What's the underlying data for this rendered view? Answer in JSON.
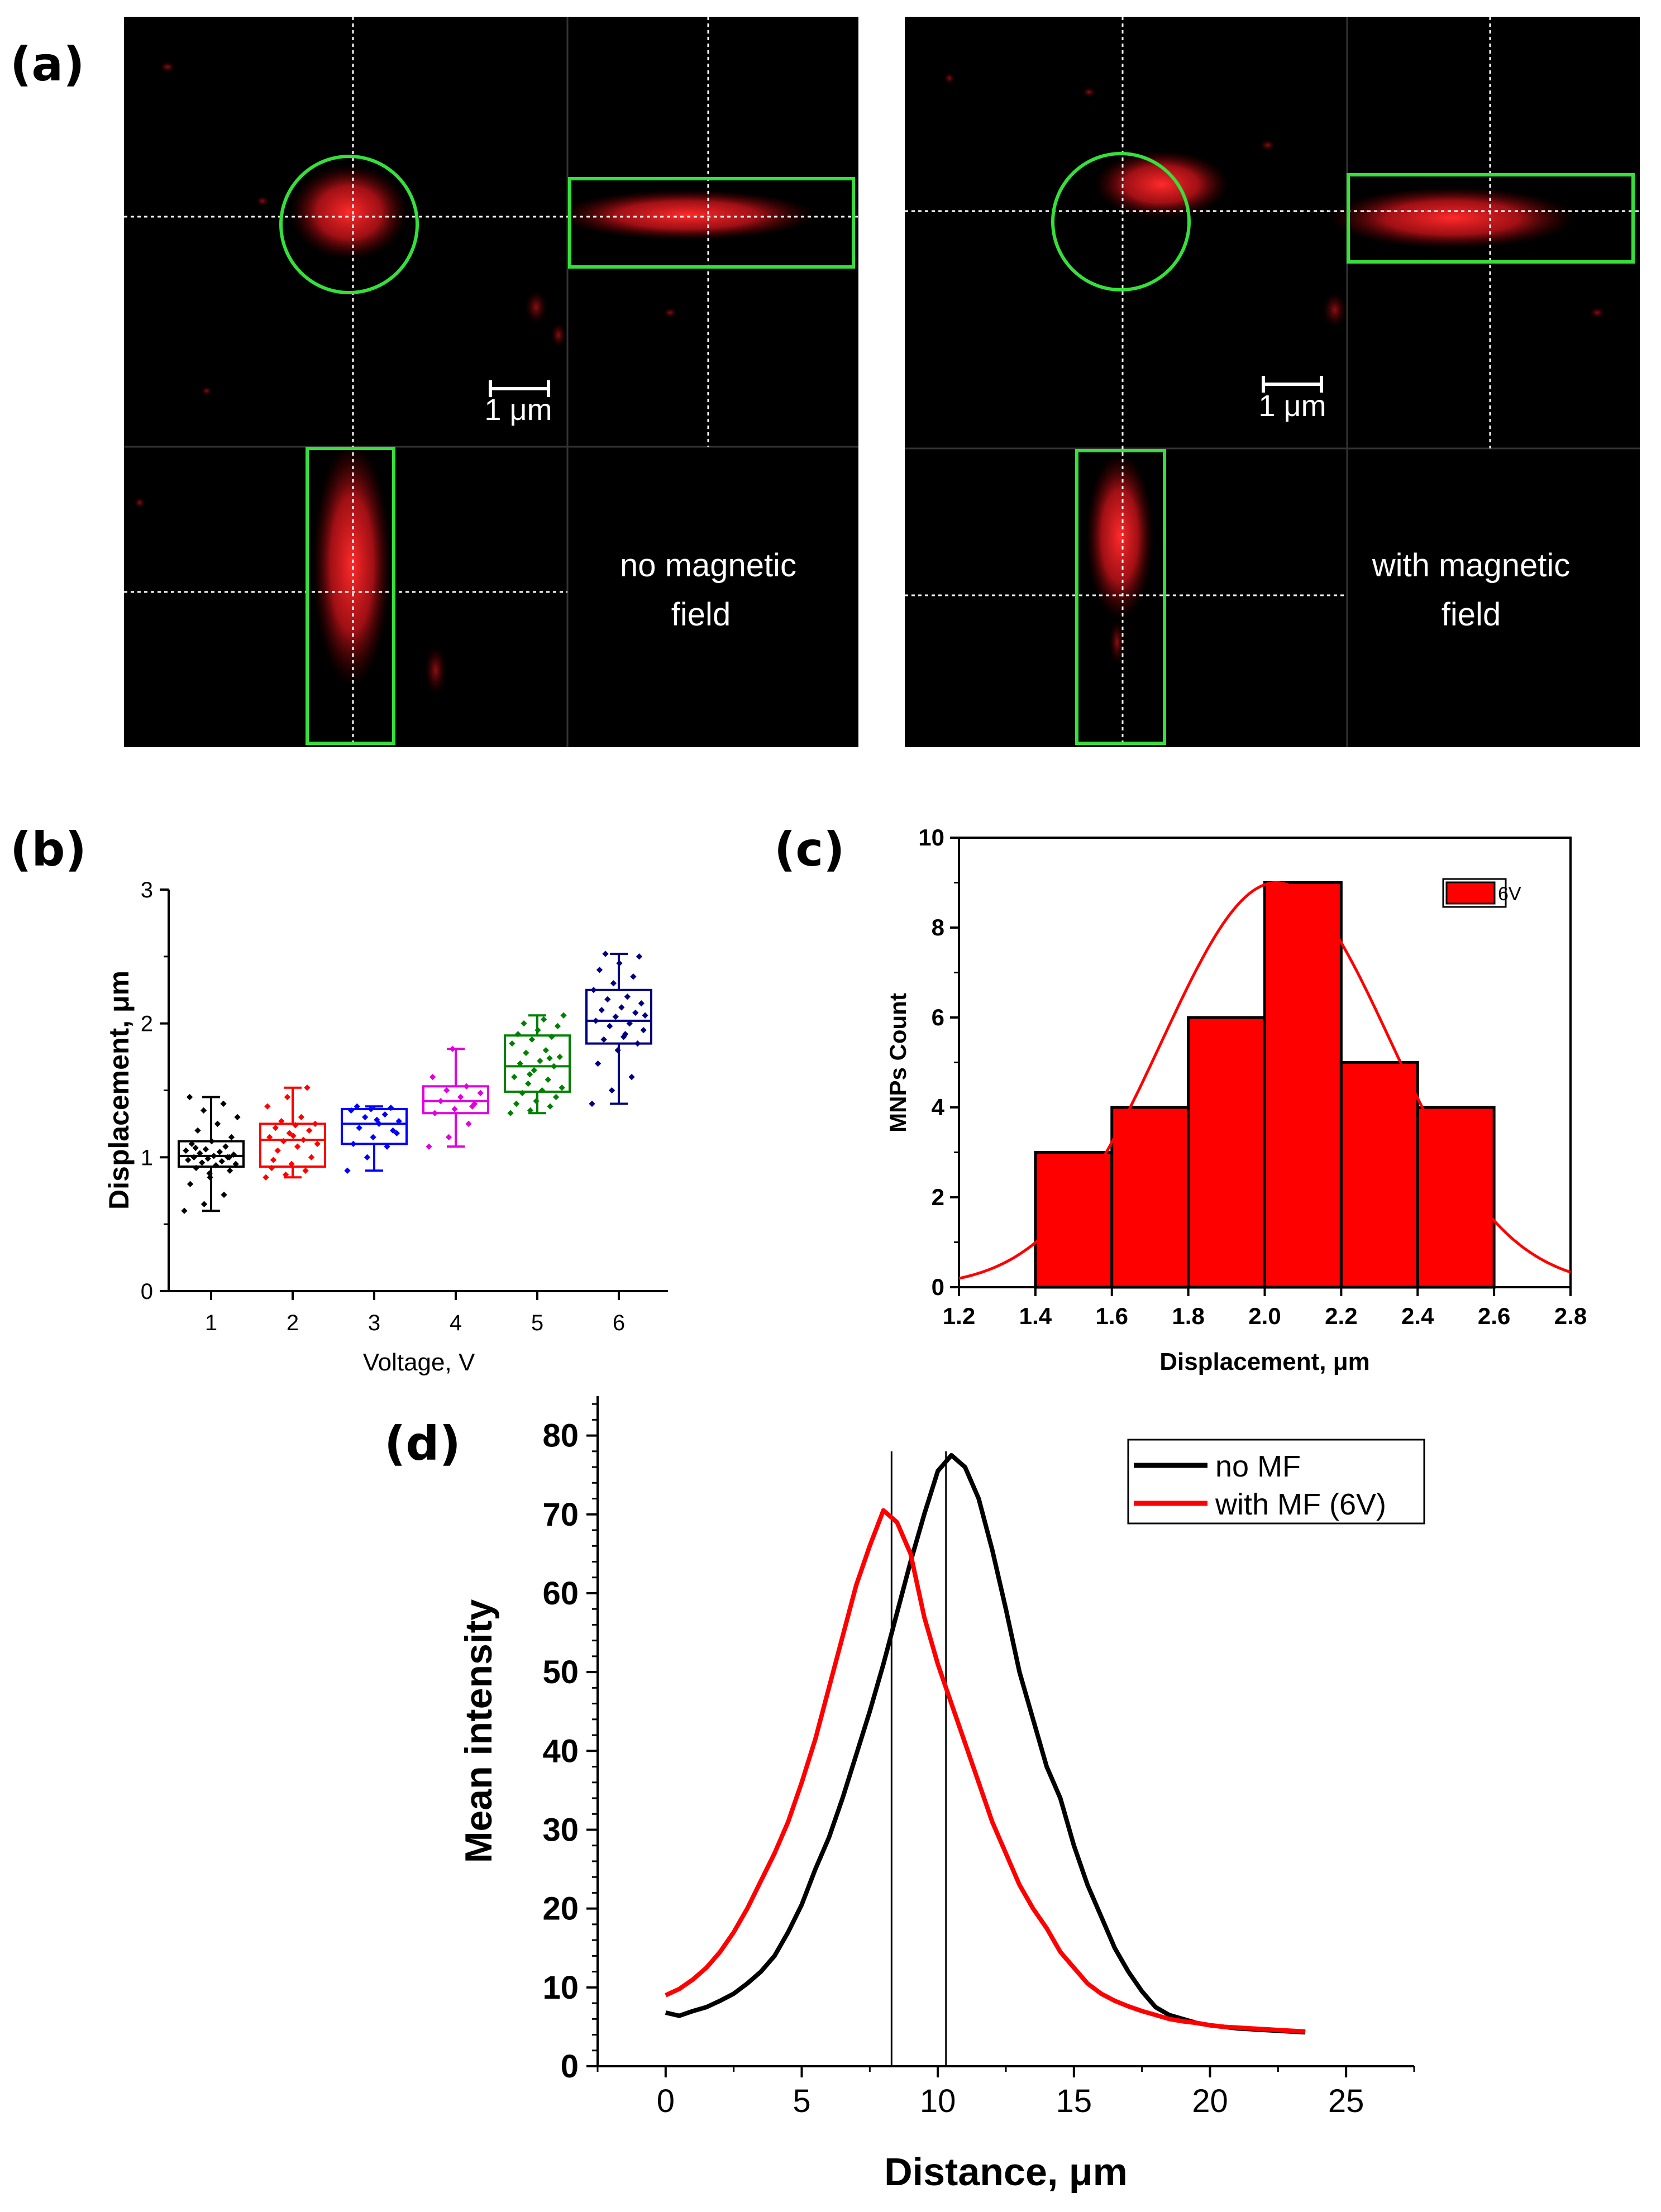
{
  "panel_labels": {
    "a": "(a)",
    "b": "(b)",
    "c": "(c)",
    "d": "(d)"
  },
  "micrographs": {
    "left": {
      "caption_line1": "no magnetic",
      "caption_line2": "field",
      "scale_bar": "1 μm"
    },
    "right": {
      "caption_line1": "with magnetic",
      "caption_line2": "field",
      "scale_bar": "1 μm"
    }
  },
  "colors": {
    "marker_green": "#35e03a",
    "signal_red": "#e8171c",
    "crosshair": "#ffffff"
  },
  "chart_data": [
    {
      "id": "b",
      "type": "box",
      "xlabel": "Voltage, V",
      "ylabel": "Displacement, μm",
      "categories": [
        "1",
        "2",
        "3",
        "4",
        "5",
        "6"
      ],
      "ylim": [
        0,
        3
      ],
      "yticks": [
        "0",
        "1",
        "2",
        "3"
      ],
      "colors": [
        "#000000",
        "#ff0000",
        "#0000ff",
        "#e000e0",
        "#008000",
        "#000080"
      ],
      "boxes": [
        {
          "category": "1",
          "whisker_low": 0.6,
          "q1": 0.93,
          "median": 1.01,
          "q3": 1.12,
          "whisker_high": 1.45
        },
        {
          "category": "2",
          "whisker_low": 0.85,
          "q1": 0.93,
          "median": 1.13,
          "q3": 1.25,
          "whisker_high": 1.52
        },
        {
          "category": "3",
          "whisker_low": 0.9,
          "q1": 1.1,
          "median": 1.25,
          "q3": 1.36,
          "whisker_high": 1.38
        },
        {
          "category": "4",
          "whisker_low": 1.08,
          "q1": 1.33,
          "median": 1.42,
          "q3": 1.53,
          "whisker_high": 1.81
        },
        {
          "category": "5",
          "whisker_low": 1.33,
          "q1": 1.49,
          "median": 1.68,
          "q3": 1.91,
          "whisker_high": 2.06
        },
        {
          "category": "6",
          "whisker_low": 1.4,
          "q1": 1.85,
          "median": 2.02,
          "q3": 2.25,
          "whisker_high": 2.52
        }
      ],
      "points": [
        [
          0.6,
          0.65,
          0.72,
          0.8,
          0.85,
          0.9,
          0.92,
          0.94,
          0.95,
          0.96,
          0.97,
          0.98,
          0.99,
          1.0,
          1.0,
          1.01,
          1.02,
          1.03,
          1.04,
          1.05,
          1.06,
          1.08,
          1.1,
          1.12,
          1.15,
          1.2,
          1.25,
          1.3,
          1.35,
          1.4,
          1.45,
          0.88,
          1.0,
          1.07
        ],
        [
          0.85,
          0.87,
          0.9,
          0.92,
          0.95,
          1.0,
          1.05,
          1.08,
          1.1,
          1.12,
          1.13,
          1.15,
          1.18,
          1.2,
          1.22,
          1.24,
          1.25,
          1.27,
          1.3,
          1.38,
          1.45,
          1.52,
          0.98,
          1.16
        ],
        [
          0.9,
          1.0,
          1.08,
          1.1,
          1.15,
          1.2,
          1.22,
          1.25,
          1.27,
          1.3,
          1.32,
          1.35,
          1.36,
          1.37,
          1.38,
          1.28,
          1.18
        ],
        [
          1.08,
          1.15,
          1.25,
          1.33,
          1.36,
          1.4,
          1.42,
          1.45,
          1.48,
          1.5,
          1.53,
          1.6,
          1.81,
          1.38
        ],
        [
          1.33,
          1.35,
          1.38,
          1.4,
          1.42,
          1.45,
          1.48,
          1.5,
          1.52,
          1.55,
          1.58,
          1.6,
          1.65,
          1.68,
          1.7,
          1.72,
          1.75,
          1.78,
          1.8,
          1.85,
          1.88,
          1.9,
          1.92,
          1.95,
          1.98,
          2.0,
          2.03,
          2.06,
          1.62,
          1.74
        ],
        [
          1.4,
          1.5,
          1.6,
          1.7,
          1.8,
          1.85,
          1.88,
          1.9,
          1.95,
          1.98,
          2.0,
          2.02,
          2.05,
          2.08,
          2.1,
          2.12,
          2.15,
          2.18,
          2.2,
          2.25,
          2.3,
          2.35,
          2.4,
          2.45,
          2.5,
          2.52,
          1.92,
          2.06
        ]
      ]
    },
    {
      "id": "c",
      "type": "histogram",
      "xlabel": "Displacement, μm",
      "ylabel": "MNPs Count",
      "xlim": [
        1.2,
        2.8
      ],
      "ylim": [
        0,
        10
      ],
      "xticks": [
        "1.2",
        "1.4",
        "1.6",
        "1.8",
        "2.0",
        "2.2",
        "2.4",
        "2.6",
        "2.8"
      ],
      "yticks": [
        "0",
        "2",
        "4",
        "6",
        "8",
        "10"
      ],
      "bin_edges": [
        1.4,
        1.6,
        1.8,
        2.0,
        2.2,
        2.4,
        2.6
      ],
      "counts": [
        3,
        4,
        6,
        9,
        5,
        4
      ],
      "fit": {
        "type": "gaussian",
        "mean": 2.03,
        "sigma": 0.3,
        "peak": 9.0
      },
      "legend": "6V",
      "color": "#ff0000"
    },
    {
      "id": "d",
      "type": "line",
      "xlabel": "Distance, μm",
      "ylabel": "Mean intensity",
      "xlim": [
        -2.5,
        27.5
      ],
      "ylim": [
        0,
        85
      ],
      "xticks": [
        "0",
        "5",
        "10",
        "15",
        "20",
        "25"
      ],
      "yticks": [
        "0",
        "10",
        "20",
        "30",
        "40",
        "50",
        "60",
        "70",
        "80"
      ],
      "vlines": [
        8.3,
        10.3
      ],
      "series": [
        {
          "name": "no MF",
          "color": "#000000",
          "x": [
            0,
            0.5,
            1,
            1.5,
            2,
            2.5,
            3,
            3.5,
            4,
            4.5,
            5,
            5.5,
            6,
            6.5,
            7,
            7.5,
            8,
            8.5,
            9,
            9.5,
            10,
            10.5,
            11,
            11.5,
            12,
            12.5,
            13,
            13.5,
            14,
            14.5,
            15,
            15.5,
            16,
            16.5,
            17,
            17.5,
            18,
            18.5,
            19,
            19.5,
            20,
            20.5,
            21,
            21.5,
            22,
            22.5,
            23,
            23.5
          ],
          "y": [
            6.8,
            6.4,
            7,
            7.5,
            8.3,
            9.2,
            10.5,
            12,
            14,
            17,
            20.5,
            25,
            29,
            34,
            39.5,
            45,
            51,
            57.5,
            64,
            70,
            75.5,
            77.5,
            76,
            72,
            65.5,
            58,
            50,
            44,
            38,
            34,
            28,
            23,
            19,
            15,
            12,
            9.5,
            7.5,
            6.5,
            6,
            5.5,
            5.2,
            5,
            4.8,
            4.7,
            4.6,
            4.5,
            4.4,
            4.3
          ]
        },
        {
          "name": "with MF (6V)",
          "color": "#ff0000",
          "x": [
            0,
            0.5,
            1,
            1.5,
            2,
            2.5,
            3,
            3.5,
            4,
            4.5,
            5,
            5.5,
            6,
            6.5,
            7,
            7.5,
            8,
            8.5,
            9,
            9.5,
            10,
            10.5,
            11,
            11.5,
            12,
            12.5,
            13,
            13.5,
            14,
            14.5,
            15,
            15.5,
            16,
            16.5,
            17,
            17.5,
            18,
            18.5,
            19,
            19.5,
            20,
            20.5,
            21,
            21.5,
            22,
            22.5,
            23,
            23.5
          ],
          "y": [
            9,
            9.8,
            11,
            12.5,
            14.5,
            17,
            20,
            23.5,
            27,
            31,
            36,
            41.5,
            48,
            54.5,
            61,
            66,
            70.5,
            69,
            65,
            57,
            51,
            46,
            41,
            36,
            31,
            27,
            23,
            20,
            17.5,
            14.5,
            12.5,
            10.5,
            9.2,
            8.3,
            7.6,
            7,
            6.5,
            6,
            5.7,
            5.5,
            5.2,
            5,
            4.9,
            4.8,
            4.7,
            4.6,
            4.5,
            4.4
          ]
        }
      ]
    }
  ]
}
